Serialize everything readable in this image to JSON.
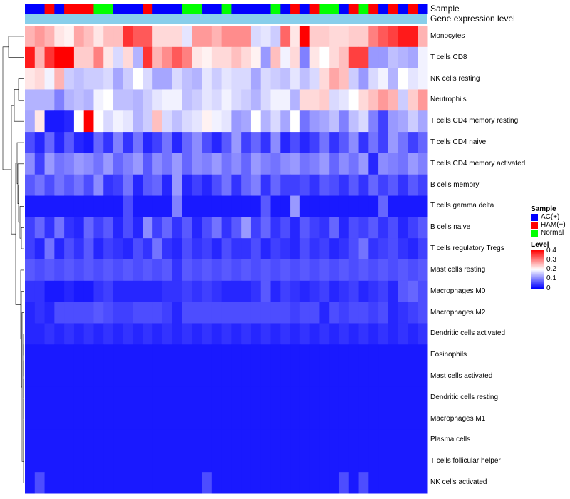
{
  "tracks": {
    "sample_label": "Sample",
    "expression_label": "Gene expression level"
  },
  "legend": {
    "sample_title": "Sample",
    "sample_items": [
      {
        "label": "AC(+)",
        "color": "#0000ff"
      },
      {
        "label": "HAM(+)",
        "color": "#ff0000"
      },
      {
        "label": "Normal",
        "color": "#00ff00"
      }
    ],
    "level_title": "Level",
    "level_ticks": [
      "0.4",
      "0.3",
      "0.2",
      "0.1",
      "0"
    ]
  },
  "colors": {
    "low": "#0000ff",
    "mid": "#ffffff",
    "high": "#ff0000",
    "expression_track": "#87ceeb"
  },
  "chart_data": {
    "type": "heatmap",
    "title": "",
    "value_range": [
      0,
      0.4
    ],
    "sample_groups": [
      "AC",
      "AC",
      "HAM",
      "AC",
      "HAM",
      "HAM",
      "HAM",
      "Normal",
      "Normal",
      "AC",
      "AC",
      "AC",
      "HAM",
      "AC",
      "AC",
      "AC",
      "Normal",
      "Normal",
      "AC",
      "AC",
      "Normal",
      "AC",
      "AC",
      "AC",
      "AC",
      "Normal",
      "AC",
      "HAM",
      "AC",
      "HAM",
      "Normal",
      "Normal",
      "AC",
      "HAM",
      "Normal",
      "HAM",
      "AC",
      "HAM",
      "AC",
      "HAM",
      "AC"
    ],
    "rows": [
      {
        "name": "Monocytes",
        "values": [
          0.26,
          0.28,
          0.26,
          0.22,
          0.21,
          0.27,
          0.25,
          0.22,
          0.25,
          0.25,
          0.36,
          0.33,
          0.33,
          0.23,
          0.23,
          0.23,
          0.18,
          0.28,
          0.28,
          0.26,
          0.29,
          0.29,
          0.29,
          0.17,
          0.18,
          0.16,
          0.32,
          0.22,
          0.4,
          0.24,
          0.24,
          0.23,
          0.23,
          0.24,
          0.24,
          0.3,
          0.33,
          0.35,
          0.38,
          0.38,
          0.26
        ]
      },
      {
        "name": "T cells CD8",
        "values": [
          0.38,
          0.26,
          0.36,
          0.4,
          0.4,
          0.24,
          0.24,
          0.3,
          0.22,
          0.17,
          0.23,
          0.14,
          0.36,
          0.26,
          0.29,
          0.33,
          0.3,
          0.22,
          0.21,
          0.23,
          0.23,
          0.25,
          0.23,
          0.21,
          0.12,
          0.25,
          0.19,
          0.23,
          0.1,
          0.22,
          0.2,
          0.23,
          0.25,
          0.35,
          0.35,
          0.12,
          0.12,
          0.15,
          0.14,
          0.13,
          0.19
        ]
      },
      {
        "name": "NK cells resting",
        "values": [
          0.22,
          0.23,
          0.19,
          0.26,
          0.16,
          0.15,
          0.16,
          0.16,
          0.17,
          0.13,
          0.16,
          0.2,
          0.17,
          0.13,
          0.13,
          0.17,
          0.15,
          0.14,
          0.18,
          0.16,
          0.18,
          0.17,
          0.17,
          0.13,
          0.17,
          0.16,
          0.15,
          0.18,
          0.15,
          0.17,
          0.23,
          0.27,
          0.25,
          0.16,
          0.12,
          0.17,
          0.19,
          0.14,
          0.2,
          0.18,
          0.19
        ]
      },
      {
        "name": "Neutrophils",
        "values": [
          0.14,
          0.14,
          0.14,
          0.1,
          0.14,
          0.15,
          0.14,
          0.19,
          0.2,
          0.15,
          0.15,
          0.14,
          0.16,
          0.18,
          0.19,
          0.19,
          0.15,
          0.16,
          0.18,
          0.17,
          0.19,
          0.17,
          0.16,
          0.14,
          0.17,
          0.19,
          0.19,
          0.14,
          0.23,
          0.23,
          0.24,
          0.17,
          0.18,
          0.2,
          0.23,
          0.25,
          0.28,
          0.26,
          0.16,
          0.24,
          0.28
        ]
      },
      {
        "name": "T cells CD4 memory resting",
        "values": [
          0.13,
          0.22,
          0.02,
          0.02,
          0.03,
          0.2,
          0.4,
          0.2,
          0.17,
          0.19,
          0.18,
          0.14,
          0.16,
          0.25,
          0.17,
          0.15,
          0.17,
          0.18,
          0.21,
          0.19,
          0.18,
          0.12,
          0.13,
          0.2,
          0.14,
          0.17,
          0.13,
          0.2,
          0.09,
          0.12,
          0.13,
          0.15,
          0.1,
          0.15,
          0.17,
          0.1,
          0.05,
          0.12,
          0.13,
          0.16,
          0.13
        ]
      },
      {
        "name": "T cells CD4 naive",
        "values": [
          0.06,
          0.03,
          0.08,
          0.03,
          0.07,
          0.03,
          0.02,
          0.08,
          0.04,
          0.1,
          0.04,
          0.09,
          0.03,
          0.05,
          0.09,
          0.03,
          0.08,
          0.11,
          0.06,
          0.03,
          0.07,
          0.12,
          0.05,
          0.08,
          0.04,
          0.11,
          0.03,
          0.06,
          0.03,
          0.05,
          0.09,
          0.04,
          0.07,
          0.11,
          0.04,
          0.09,
          0.05,
          0.12,
          0.09,
          0.05,
          0.08
        ]
      },
      {
        "name": "T cells CD4 memory activated",
        "values": [
          0.11,
          0.05,
          0.12,
          0.09,
          0.1,
          0.12,
          0.11,
          0.09,
          0.12,
          0.08,
          0.1,
          0.12,
          0.07,
          0.11,
          0.09,
          0.12,
          0.08,
          0.11,
          0.1,
          0.12,
          0.09,
          0.11,
          0.08,
          0.12,
          0.1,
          0.09,
          0.11,
          0.12,
          0.09,
          0.1,
          0.12,
          0.08,
          0.11,
          0.09,
          0.12,
          0.03,
          0.11,
          0.1,
          0.09,
          0.12,
          0.1
        ]
      },
      {
        "name": "B cells memory",
        "values": [
          0.07,
          0.09,
          0.06,
          0.09,
          0.07,
          0.09,
          0.06,
          0.11,
          0.04,
          0.05,
          0.09,
          0.03,
          0.07,
          0.08,
          0.03,
          0.12,
          0.03,
          0.05,
          0.03,
          0.06,
          0.09,
          0.04,
          0.08,
          0.1,
          0.04,
          0.08,
          0.05,
          0.05,
          0.06,
          0.04,
          0.07,
          0.06,
          0.04,
          0.07,
          0.04,
          0.08,
          0.05,
          0.07,
          0.04,
          0.07,
          0.05
        ]
      },
      {
        "name": "T cells gamma delta",
        "values": [
          0.02,
          0.02,
          0.02,
          0.02,
          0.02,
          0.02,
          0.02,
          0.02,
          0.02,
          0.02,
          0.06,
          0.02,
          0.02,
          0.02,
          0.02,
          0.1,
          0.02,
          0.02,
          0.02,
          0.02,
          0.02,
          0.02,
          0.02,
          0.02,
          0.07,
          0.02,
          0.02,
          0.12,
          0.02,
          0.02,
          0.02,
          0.02,
          0.02,
          0.02,
          0.02,
          0.02,
          0.08,
          0.02,
          0.02,
          0.02,
          0.02
        ]
      },
      {
        "name": "B cells naive",
        "values": [
          0.05,
          0.08,
          0.04,
          0.09,
          0.04,
          0.03,
          0.08,
          0.05,
          0.07,
          0.03,
          0.06,
          0.03,
          0.11,
          0.05,
          0.08,
          0.04,
          0.07,
          0.03,
          0.06,
          0.09,
          0.04,
          0.07,
          0.12,
          0.05,
          0.08,
          0.04,
          0.06,
          0.03,
          0.07,
          0.05,
          0.04,
          0.08,
          0.03,
          0.06,
          0.05,
          0.07,
          0.04,
          0.06,
          0.03,
          0.05,
          0.07
        ]
      },
      {
        "name": "T cells regulatory  Tregs",
        "values": [
          0.05,
          0.03,
          0.09,
          0.03,
          0.06,
          0.04,
          0.07,
          0.03,
          0.05,
          0.04,
          0.03,
          0.06,
          0.04,
          0.09,
          0.04,
          0.03,
          0.06,
          0.04,
          0.05,
          0.03,
          0.06,
          0.04,
          0.04,
          0.06,
          0.03,
          0.05,
          0.04,
          0.03,
          0.06,
          0.04,
          0.05,
          0.03,
          0.04,
          0.06,
          0.09,
          0.04,
          0.05,
          0.06,
          0.04,
          0.03,
          0.05
        ]
      },
      {
        "name": "Mast cells resting",
        "values": [
          0.07,
          0.06,
          0.07,
          0.06,
          0.07,
          0.06,
          0.07,
          0.06,
          0.07,
          0.06,
          0.07,
          0.06,
          0.07,
          0.06,
          0.07,
          0.04,
          0.07,
          0.06,
          0.07,
          0.06,
          0.07,
          0.06,
          0.07,
          0.06,
          0.07,
          0.06,
          0.07,
          0.06,
          0.07,
          0.06,
          0.07,
          0.06,
          0.07,
          0.06,
          0.07,
          0.06,
          0.07,
          0.06,
          0.07,
          0.06,
          0.07
        ]
      },
      {
        "name": "Macrophages M0",
        "values": [
          0.04,
          0.04,
          0.02,
          0.02,
          0.03,
          0.02,
          0.02,
          0.04,
          0.05,
          0.03,
          0.03,
          0.03,
          0.03,
          0.03,
          0.04,
          0.04,
          0.05,
          0.04,
          0.05,
          0.04,
          0.03,
          0.03,
          0.03,
          0.04,
          0.07,
          0.03,
          0.05,
          0.04,
          0.03,
          0.04,
          0.05,
          0.03,
          0.04,
          0.05,
          0.03,
          0.04,
          0.05,
          0.03,
          0.07,
          0.08,
          0.06
        ]
      },
      {
        "name": "Macrophages M2",
        "values": [
          0.03,
          0.04,
          0.03,
          0.06,
          0.06,
          0.06,
          0.06,
          0.07,
          0.06,
          0.05,
          0.05,
          0.06,
          0.06,
          0.06,
          0.05,
          0.03,
          0.06,
          0.06,
          0.06,
          0.06,
          0.06,
          0.06,
          0.06,
          0.06,
          0.06,
          0.06,
          0.06,
          0.05,
          0.06,
          0.06,
          0.03,
          0.06,
          0.05,
          0.06,
          0.06,
          0.05,
          0.06,
          0.03,
          0.04,
          0.05,
          0.06
        ]
      },
      {
        "name": "Dendritic cells activated",
        "values": [
          0.03,
          0.03,
          0.04,
          0.03,
          0.04,
          0.03,
          0.04,
          0.03,
          0.04,
          0.03,
          0.04,
          0.03,
          0.04,
          0.03,
          0.04,
          0.03,
          0.04,
          0.03,
          0.04,
          0.03,
          0.04,
          0.03,
          0.04,
          0.03,
          0.04,
          0.03,
          0.04,
          0.03,
          0.04,
          0.03,
          0.04,
          0.03,
          0.04,
          0.03,
          0.04,
          0.03,
          0.04,
          0.03,
          0.04,
          0.03,
          0.04
        ]
      },
      {
        "name": "Eosinophils",
        "values": [
          0.02,
          0.02,
          0.02,
          0.02,
          0.02,
          0.02,
          0.02,
          0.02,
          0.02,
          0.02,
          0.02,
          0.02,
          0.02,
          0.02,
          0.02,
          0.02,
          0.02,
          0.02,
          0.02,
          0.02,
          0.02,
          0.02,
          0.02,
          0.02,
          0.02,
          0.02,
          0.02,
          0.02,
          0.02,
          0.02,
          0.02,
          0.02,
          0.02,
          0.02,
          0.02,
          0.02,
          0.02,
          0.02,
          0.02,
          0.02,
          0.02
        ]
      },
      {
        "name": "Mast cells activated",
        "values": [
          0.02,
          0.02,
          0.02,
          0.02,
          0.02,
          0.02,
          0.02,
          0.02,
          0.02,
          0.02,
          0.02,
          0.02,
          0.02,
          0.02,
          0.02,
          0.02,
          0.02,
          0.02,
          0.02,
          0.02,
          0.02,
          0.02,
          0.02,
          0.02,
          0.02,
          0.02,
          0.02,
          0.02,
          0.02,
          0.02,
          0.02,
          0.02,
          0.02,
          0.02,
          0.02,
          0.02,
          0.02,
          0.02,
          0.02,
          0.02,
          0.02
        ]
      },
      {
        "name": "Dendritic cells resting",
        "values": [
          0.02,
          0.02,
          0.02,
          0.02,
          0.02,
          0.02,
          0.02,
          0.02,
          0.02,
          0.02,
          0.02,
          0.02,
          0.02,
          0.02,
          0.02,
          0.02,
          0.02,
          0.02,
          0.02,
          0.02,
          0.02,
          0.02,
          0.02,
          0.02,
          0.02,
          0.02,
          0.02,
          0.02,
          0.02,
          0.02,
          0.02,
          0.02,
          0.02,
          0.02,
          0.02,
          0.02,
          0.02,
          0.02,
          0.02,
          0.02,
          0.02
        ]
      },
      {
        "name": "Macrophages M1",
        "values": [
          0.02,
          0.02,
          0.02,
          0.02,
          0.02,
          0.02,
          0.02,
          0.02,
          0.02,
          0.02,
          0.02,
          0.02,
          0.02,
          0.02,
          0.02,
          0.02,
          0.02,
          0.02,
          0.02,
          0.02,
          0.02,
          0.02,
          0.02,
          0.02,
          0.02,
          0.02,
          0.02,
          0.02,
          0.02,
          0.02,
          0.02,
          0.02,
          0.02,
          0.02,
          0.02,
          0.02,
          0.02,
          0.02,
          0.02,
          0.02,
          0.02
        ]
      },
      {
        "name": "Plasma cells",
        "values": [
          0.02,
          0.02,
          0.02,
          0.02,
          0.02,
          0.02,
          0.02,
          0.02,
          0.02,
          0.02,
          0.02,
          0.02,
          0.02,
          0.02,
          0.02,
          0.02,
          0.02,
          0.02,
          0.02,
          0.02,
          0.02,
          0.02,
          0.02,
          0.02,
          0.02,
          0.02,
          0.02,
          0.02,
          0.02,
          0.02,
          0.02,
          0.02,
          0.02,
          0.02,
          0.02,
          0.02,
          0.02,
          0.02,
          0.02,
          0.02,
          0.02
        ]
      },
      {
        "name": "T cells follicular helper",
        "values": [
          0.02,
          0.02,
          0.02,
          0.02,
          0.02,
          0.02,
          0.02,
          0.02,
          0.02,
          0.02,
          0.02,
          0.02,
          0.02,
          0.02,
          0.02,
          0.02,
          0.02,
          0.02,
          0.02,
          0.02,
          0.02,
          0.02,
          0.02,
          0.02,
          0.02,
          0.02,
          0.02,
          0.02,
          0.02,
          0.02,
          0.02,
          0.02,
          0.02,
          0.02,
          0.02,
          0.02,
          0.02,
          0.02,
          0.02,
          0.02,
          0.02
        ]
      },
      {
        "name": "NK cells activated",
        "values": [
          0.02,
          0.06,
          0.02,
          0.02,
          0.02,
          0.02,
          0.02,
          0.02,
          0.02,
          0.02,
          0.02,
          0.02,
          0.02,
          0.02,
          0.02,
          0.02,
          0.02,
          0.02,
          0.06,
          0.02,
          0.02,
          0.02,
          0.02,
          0.02,
          0.02,
          0.02,
          0.02,
          0.02,
          0.02,
          0.02,
          0.02,
          0.02,
          0.06,
          0.02,
          0.06,
          0.02,
          0.02,
          0.02,
          0.02,
          0.02,
          0.02
        ]
      }
    ]
  }
}
